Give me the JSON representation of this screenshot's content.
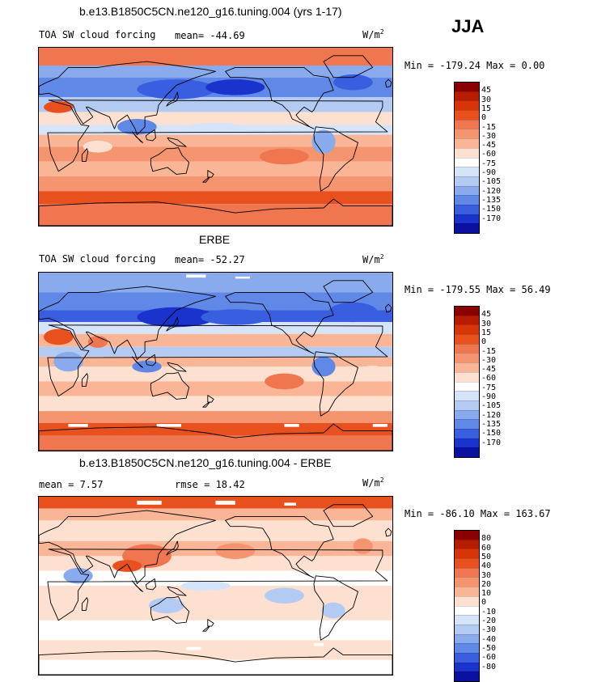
{
  "season": "JJA",
  "panels": [
    {
      "title": "b.e13.B1850C5CN.ne120_g16.tuning.004 (yrs 1-17)",
      "variable": "TOA SW cloud forcing",
      "stat_text": "mean= -44.69",
      "units": "W/m",
      "units_exp": "2",
      "minmax": "Min = -179.24 Max =   0.00",
      "levels": [
        "45",
        "30",
        "15",
        "0",
        "-15",
        "-30",
        "-45",
        "-60",
        "-75",
        "-90",
        "-105",
        "-120",
        "-135",
        "-150",
        "-170"
      ],
      "colors": [
        "#8b0000",
        "#b71c00",
        "#d8340a",
        "#e8501e",
        "#f07650",
        "#f5956f",
        "#f9b596",
        "#fde0cf",
        "#ffffff",
        "#d6e4fa",
        "#b3caf3",
        "#8aaaee",
        "#6088e6",
        "#3a5ee0",
        "#1a33cc",
        "#0a10a0"
      ]
    },
    {
      "title": "ERBE",
      "variable": "TOA SW cloud forcing",
      "stat_text": "mean= -52.27",
      "units": "W/m",
      "units_exp": "2",
      "minmax": "Min = -179.55 Max =  56.49",
      "levels": [
        "45",
        "30",
        "15",
        "0",
        "-15",
        "-30",
        "-45",
        "-60",
        "-75",
        "-90",
        "-105",
        "-120",
        "-135",
        "-150",
        "-170"
      ],
      "colors": [
        "#8b0000",
        "#b71c00",
        "#d8340a",
        "#e8501e",
        "#f07650",
        "#f5956f",
        "#f9b596",
        "#fde0cf",
        "#ffffff",
        "#d6e4fa",
        "#b3caf3",
        "#8aaaee",
        "#6088e6",
        "#3a5ee0",
        "#1a33cc",
        "#0a10a0"
      ]
    },
    {
      "title": "b.e13.B1850C5CN.ne120_g16.tuning.004 - ERBE",
      "stat_text": "mean =   7.57",
      "stat2_text": "rmse =  18.42",
      "units": "W/m",
      "units_exp": "2",
      "minmax": "Min = -86.10 Max = 163.67",
      "levels": [
        "80",
        "60",
        "50",
        "40",
        "30",
        "20",
        "10",
        "0",
        "-10",
        "-20",
        "-30",
        "-40",
        "-50",
        "-60",
        "-80"
      ],
      "colors": [
        "#8b0000",
        "#b71c00",
        "#d8340a",
        "#e8501e",
        "#f07650",
        "#f5956f",
        "#f9b596",
        "#fde0cf",
        "#ffffff",
        "#d6e4fa",
        "#b3caf3",
        "#8aaaee",
        "#6088e6",
        "#3a5ee0",
        "#1a33cc",
        "#0a10a0"
      ]
    }
  ]
}
